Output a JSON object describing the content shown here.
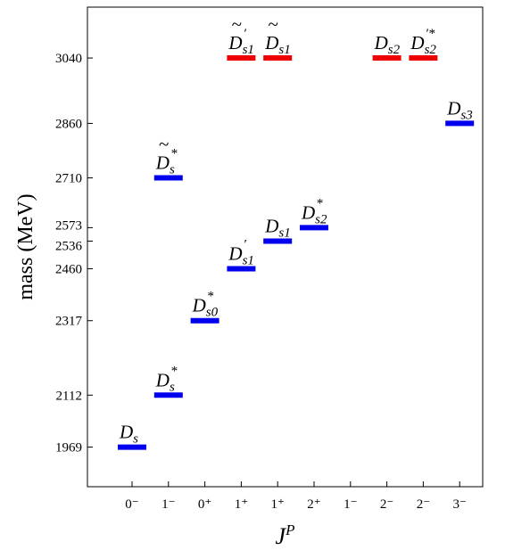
{
  "chart_data": {
    "type": "scatter",
    "xlabel": "J",
    "xlabel_sup": "P",
    "ylabel": "mass (MeV)",
    "ylim": [
      1860,
      3180
    ],
    "y_ticks": [
      1969,
      2112,
      2317,
      2460,
      2536,
      2573,
      2710,
      2860,
      3040
    ],
    "categories": [
      "0⁻",
      "1⁻",
      "0⁺",
      "1⁺",
      "1⁺",
      "2⁺",
      "1⁻",
      "2⁻",
      "2⁻",
      "3⁻"
    ],
    "colors": {
      "observed": "#0000ee",
      "predicted": "#ee0000"
    },
    "levels": [
      {
        "x": 0,
        "mass": 1969,
        "color": "observed",
        "base": "D",
        "tilde": false,
        "sub": "s",
        "sup": ""
      },
      {
        "x": 1,
        "mass": 2112,
        "color": "observed",
        "base": "D",
        "tilde": false,
        "sub": "s",
        "sup": "*"
      },
      {
        "x": 1,
        "mass": 2710,
        "color": "observed",
        "base": "D",
        "tilde": true,
        "sub": "s",
        "sup": "*"
      },
      {
        "x": 2,
        "mass": 2317,
        "color": "observed",
        "base": "D",
        "tilde": false,
        "sub": "s0",
        "sup": "*"
      },
      {
        "x": 3,
        "mass": 2460,
        "color": "observed",
        "base": "D",
        "tilde": false,
        "sub": "s1",
        "sup": "′"
      },
      {
        "x": 3,
        "mass": 3040,
        "color": "predicted",
        "base": "D",
        "tilde": true,
        "sub": "s1",
        "sup": "′"
      },
      {
        "x": 4,
        "mass": 2536,
        "color": "observed",
        "base": "D",
        "tilde": false,
        "sub": "s1",
        "sup": ""
      },
      {
        "x": 4,
        "mass": 3040,
        "color": "predicted",
        "base": "D",
        "tilde": true,
        "sub": "s1",
        "sup": ""
      },
      {
        "x": 5,
        "mass": 2573,
        "color": "observed",
        "base": "D",
        "tilde": false,
        "sub": "s2",
        "sup": "*"
      },
      {
        "x": 7,
        "mass": 3040,
        "color": "predicted",
        "base": "D",
        "tilde": false,
        "sub": "s2",
        "sup": ""
      },
      {
        "x": 8,
        "mass": 3040,
        "color": "predicted",
        "base": "D",
        "tilde": false,
        "sub": "s2",
        "sup": "′*"
      },
      {
        "x": 9,
        "mass": 2860,
        "color": "observed",
        "base": "D",
        "tilde": false,
        "sub": "s3",
        "sup": ""
      }
    ]
  }
}
